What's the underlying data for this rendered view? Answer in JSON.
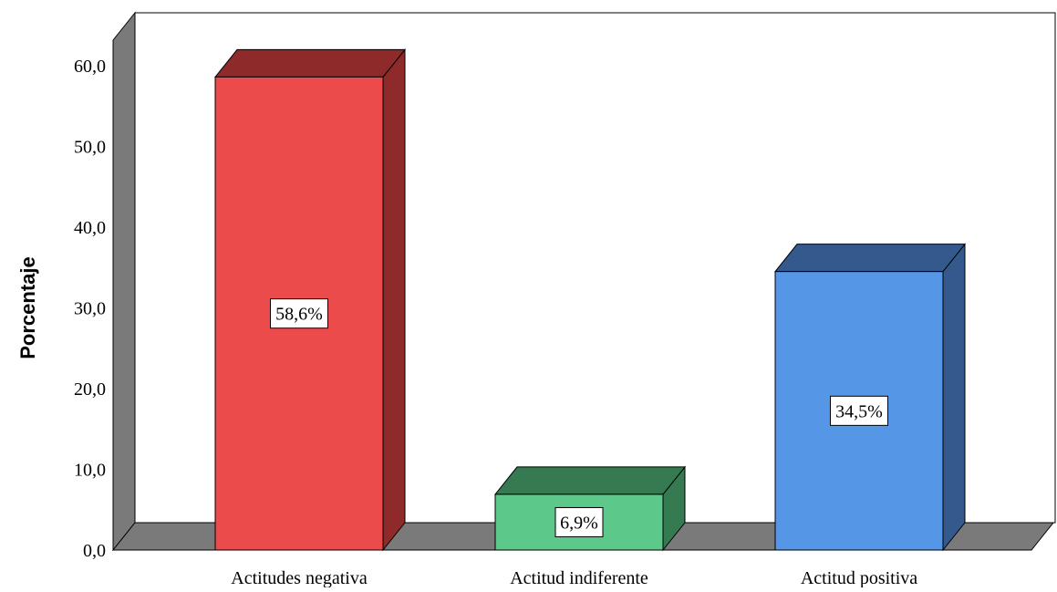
{
  "chart_data": {
    "type": "bar",
    "categories": [
      "Actitudes negativa",
      "Actitud indiferente",
      "Actitud positiva"
    ],
    "values": [
      58.6,
      6.9,
      34.5
    ],
    "data_labels": [
      "58,6%",
      "6,9%",
      "34,5%"
    ],
    "title": "",
    "xlabel": "",
    "ylabel": "Porcentaje",
    "ylim": [
      0,
      60
    ],
    "yticks": [
      0,
      10,
      20,
      30,
      40,
      50,
      60
    ],
    "ytick_labels": [
      "0,0",
      "10,0",
      "20,0",
      "30,0",
      "40,0",
      "50,0",
      "60,0"
    ],
    "grid": false,
    "style": "3d",
    "colors": {
      "bars": [
        {
          "front": "#ec4b4b",
          "top": "#8e2a2a",
          "side": "#8e2a2a"
        },
        {
          "front": "#5cc98a",
          "top": "#357a51",
          "side": "#357a51"
        },
        {
          "front": "#5596e6",
          "top": "#345a8d",
          "side": "#345a8d"
        }
      ],
      "walls": "#7a7a7a"
    }
  }
}
